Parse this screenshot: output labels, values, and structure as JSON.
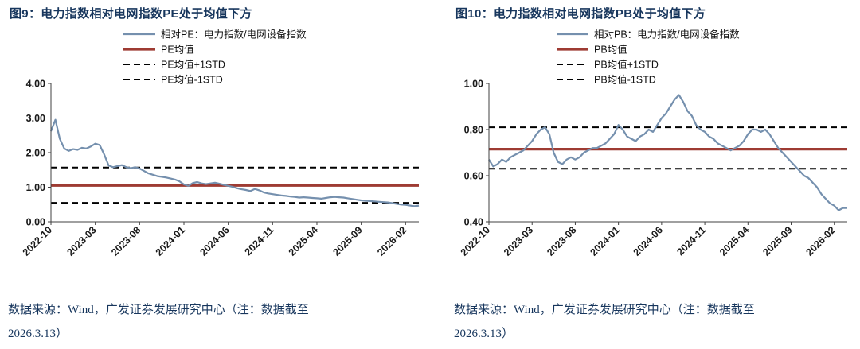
{
  "colors": {
    "series_line": "#7590AE",
    "mean_line": "#9E3B33",
    "std_line": "#000000",
    "title_text": "#17365D",
    "footer_text": "#17365D",
    "axis": "#404040"
  },
  "chart_data": [
    {
      "type": "line",
      "title": "图9：电力指数相对电网指数PE处于均值下方",
      "legend": [
        "相对PE：电力指数/电网设备指数",
        "PE均值",
        "PE均值+1STD",
        "PE均值-1STD"
      ],
      "legend_position": "top",
      "grid": false,
      "ylim": [
        0.0,
        4.0
      ],
      "y_ticks": [
        0.0,
        1.0,
        2.0,
        3.0,
        4.0
      ],
      "x_tick_labels": [
        "2022-10",
        "2023-03",
        "2023-08",
        "2024-01",
        "2024-06",
        "2024-11",
        "2025-04",
        "2025-09",
        "2026-02"
      ],
      "x_tick_months": [
        0,
        5,
        10,
        15,
        20,
        25,
        30,
        35,
        40
      ],
      "x_span_months": 41.5,
      "reference_lines": {
        "mean": 1.05,
        "mean_plus_1std": 1.57,
        "mean_minus_1std": 0.55
      },
      "series": {
        "name": "相对PE：电力指数/电网设备指数",
        "sampling": "semi-monthly from 2022-10 to 2026-03",
        "values": [
          2.62,
          2.95,
          2.4,
          2.12,
          2.05,
          2.1,
          2.08,
          2.14,
          2.12,
          2.18,
          2.26,
          2.22,
          1.95,
          1.63,
          1.58,
          1.61,
          1.64,
          1.58,
          1.55,
          1.58,
          1.54,
          1.47,
          1.4,
          1.36,
          1.32,
          1.3,
          1.28,
          1.25,
          1.22,
          1.17,
          1.08,
          1.04,
          1.12,
          1.15,
          1.11,
          1.09,
          1.11,
          1.13,
          1.1,
          1.07,
          1.04,
          1.01,
          0.97,
          0.94,
          0.92,
          0.89,
          0.95,
          0.91,
          0.85,
          0.82,
          0.8,
          0.78,
          0.76,
          0.75,
          0.73,
          0.72,
          0.7,
          0.71,
          0.7,
          0.69,
          0.68,
          0.67,
          0.69,
          0.71,
          0.72,
          0.71,
          0.7,
          0.68,
          0.66,
          0.64,
          0.62,
          0.61,
          0.6,
          0.59,
          0.58,
          0.57,
          0.56,
          0.54,
          0.52,
          0.5,
          0.49,
          0.47,
          0.45,
          0.47
        ]
      },
      "source_line1": "数据来源：Wind，广发证券发展研究中心（注：数据截至",
      "source_line2": "2026.3.13）"
    },
    {
      "type": "line",
      "title": "图10：电力指数相对电网指数PB处于均值下方",
      "legend": [
        "相对PB：电力指数/电网设备指数",
        "PB均值",
        "PB均值+1STD",
        "PB均值-1STD"
      ],
      "legend_position": "top",
      "grid": false,
      "ylim": [
        0.4,
        1.0
      ],
      "y_ticks": [
        0.4,
        0.6,
        0.8,
        1.0
      ],
      "x_tick_labels": [
        "2022-10",
        "2023-03",
        "2023-08",
        "2024-01",
        "2024-06",
        "2024-11",
        "2025-04",
        "2025-09",
        "2026-02"
      ],
      "x_tick_months": [
        0,
        5,
        10,
        15,
        20,
        25,
        30,
        35,
        40
      ],
      "x_span_months": 41.5,
      "reference_lines": {
        "mean": 0.715,
        "mean_plus_1std": 0.81,
        "mean_minus_1std": 0.63
      },
      "series": {
        "name": "相对PB：电力指数/电网设备指数",
        "sampling": "semi-monthly from 2022-10 to 2026-03",
        "values": [
          0.67,
          0.64,
          0.65,
          0.67,
          0.66,
          0.68,
          0.69,
          0.7,
          0.71,
          0.73,
          0.75,
          0.78,
          0.8,
          0.81,
          0.78,
          0.7,
          0.66,
          0.65,
          0.67,
          0.68,
          0.67,
          0.68,
          0.7,
          0.71,
          0.72,
          0.72,
          0.73,
          0.74,
          0.76,
          0.78,
          0.82,
          0.8,
          0.77,
          0.76,
          0.75,
          0.77,
          0.78,
          0.8,
          0.79,
          0.82,
          0.85,
          0.87,
          0.9,
          0.93,
          0.95,
          0.92,
          0.88,
          0.86,
          0.82,
          0.8,
          0.79,
          0.77,
          0.76,
          0.74,
          0.73,
          0.72,
          0.71,
          0.72,
          0.73,
          0.75,
          0.78,
          0.8,
          0.8,
          0.79,
          0.8,
          0.78,
          0.75,
          0.72,
          0.7,
          0.68,
          0.66,
          0.64,
          0.62,
          0.6,
          0.59,
          0.57,
          0.55,
          0.52,
          0.5,
          0.48,
          0.47,
          0.45,
          0.46,
          0.46
        ]
      },
      "source_line1": "数据来源：Wind，广发证券发展研究中心（注：数据截至",
      "source_line2": "2026.3.13）"
    }
  ]
}
